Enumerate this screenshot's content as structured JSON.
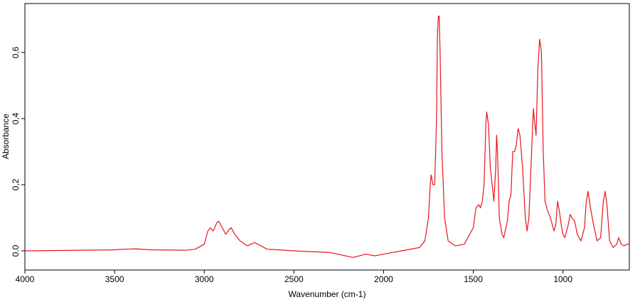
{
  "chart_data": {
    "type": "line",
    "x_label": "Wavenumber (cm-1)",
    "y_label": "Absorbance",
    "xlim": [
      4000,
      630
    ],
    "ylim": [
      -0.058,
      0.748
    ],
    "xticks": [
      4000,
      3500,
      3000,
      2500,
      2000,
      1500,
      1000
    ],
    "yticks": [
      {
        "value": 0,
        "label": "0.0"
      },
      {
        "value": 0.2,
        "label": "0,2"
      },
      {
        "value": 0.4,
        "label": "0,4"
      },
      {
        "value": 0.6,
        "label": "0,6"
      }
    ],
    "x": [
      4000,
      3500,
      3450,
      3380,
      3300,
      3100,
      3050,
      3000,
      2980,
      2965,
      2950,
      2930,
      2920,
      2900,
      2880,
      2860,
      2850,
      2830,
      2800,
      2760,
      2720,
      2700,
      2650,
      2500,
      2300,
      2170,
      2100,
      2050,
      2000,
      1900,
      1800,
      1770,
      1750,
      1740,
      1735,
      1725,
      1715,
      1705,
      1700,
      1695,
      1690,
      1685,
      1675,
      1660,
      1640,
      1600,
      1550,
      1500,
      1485,
      1470,
      1460,
      1450,
      1440,
      1430,
      1425,
      1415,
      1405,
      1395,
      1385,
      1375,
      1370,
      1365,
      1355,
      1340,
      1330,
      1310,
      1300,
      1290,
      1280,
      1270,
      1260,
      1250,
      1240,
      1225,
      1210,
      1200,
      1190,
      1175,
      1165,
      1160,
      1150,
      1140,
      1130,
      1120,
      1110,
      1100,
      1085,
      1070,
      1050,
      1040,
      1030,
      1020,
      1010,
      1000,
      990,
      970,
      960,
      950,
      935,
      920,
      900,
      880,
      870,
      860,
      850,
      830,
      810,
      790,
      775,
      765,
      755,
      740,
      720,
      700,
      690,
      675,
      660,
      640,
      630
    ],
    "series": [
      {
        "name": "Absorbance",
        "color": "#e8141c",
        "values": [
          0,
          0.003,
          0.005,
          0.006,
          0.003,
          0.002,
          0.005,
          0.02,
          0.06,
          0.07,
          0.06,
          0.085,
          0.09,
          0.07,
          0.05,
          0.065,
          0.07,
          0.05,
          0.03,
          0.015,
          0.025,
          0.02,
          0.005,
          0.0,
          -0.005,
          -0.02,
          -0.01,
          -0.015,
          -0.01,
          0.0,
          0.01,
          0.03,
          0.1,
          0.2,
          0.23,
          0.2,
          0.2,
          0.4,
          0.65,
          0.71,
          0.71,
          0.6,
          0.3,
          0.1,
          0.03,
          0.015,
          0.02,
          0.07,
          0.13,
          0.14,
          0.13,
          0.15,
          0.2,
          0.38,
          0.42,
          0.38,
          0.25,
          0.2,
          0.15,
          0.25,
          0.35,
          0.3,
          0.1,
          0.05,
          0.04,
          0.09,
          0.15,
          0.17,
          0.3,
          0.3,
          0.32,
          0.37,
          0.35,
          0.25,
          0.1,
          0.06,
          0.1,
          0.3,
          0.43,
          0.4,
          0.35,
          0.55,
          0.64,
          0.6,
          0.3,
          0.15,
          0.12,
          0.1,
          0.06,
          0.08,
          0.15,
          0.12,
          0.08,
          0.05,
          0.04,
          0.08,
          0.11,
          0.1,
          0.09,
          0.05,
          0.03,
          0.07,
          0.15,
          0.18,
          0.14,
          0.08,
          0.03,
          0.04,
          0.15,
          0.18,
          0.14,
          0.03,
          0.01,
          0.02,
          0.04,
          0.02,
          0.015,
          0.02,
          0.02
        ]
      }
    ]
  }
}
